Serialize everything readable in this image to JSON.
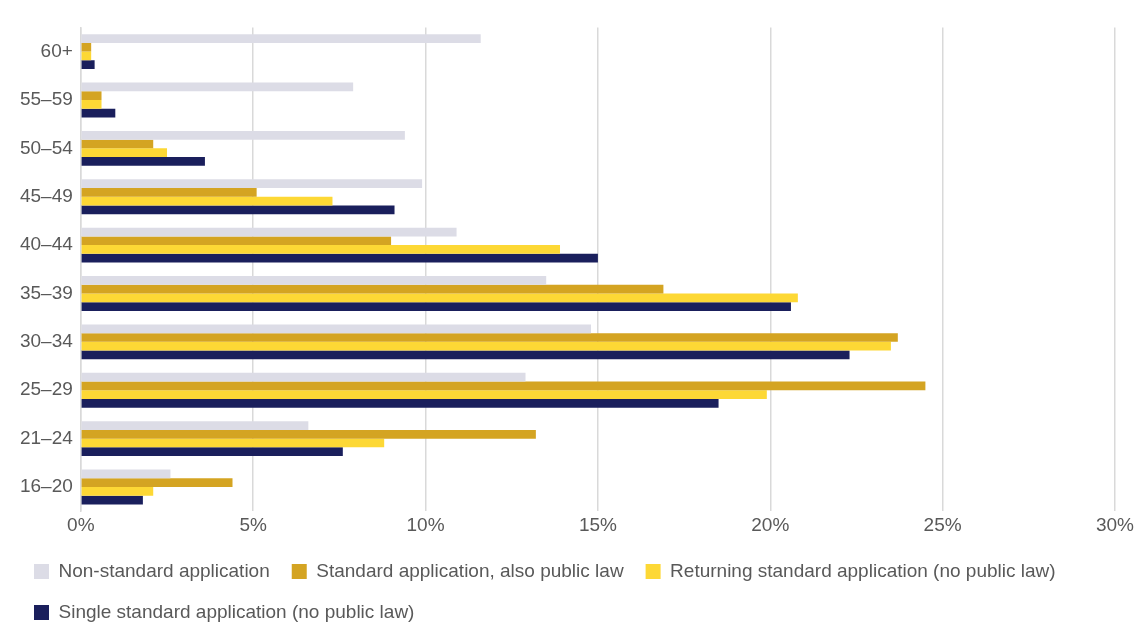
{
  "chart_data": {
    "type": "bar",
    "orientation": "horizontal",
    "categories": [
      "60+",
      "55–59",
      "50–54",
      "45–49",
      "40–44",
      "35–39",
      "30–34",
      "25–29",
      "21–24",
      "16–20"
    ],
    "series": [
      {
        "name": "Non-standard application",
        "color": "#dcdce6",
        "values": [
          11.6,
          7.9,
          9.4,
          9.9,
          10.9,
          13.5,
          14.8,
          12.9,
          6.6,
          2.6
        ]
      },
      {
        "name": "Standard application, also public law",
        "color": "#d4a422",
        "values": [
          0.3,
          0.6,
          2.1,
          5.1,
          9.0,
          16.9,
          23.7,
          24.5,
          13.2,
          4.4
        ]
      },
      {
        "name": "Returning standard application (no public law)",
        "color": "#fdd835",
        "values": [
          0.3,
          0.6,
          2.5,
          7.3,
          13.9,
          20.8,
          23.5,
          19.9,
          8.8,
          2.1
        ]
      },
      {
        "name": "Single standard application (no public law)",
        "color": "#1a1f5c",
        "values": [
          0.4,
          1.0,
          3.6,
          9.1,
          15.0,
          20.6,
          22.3,
          18.5,
          7.6,
          1.8
        ]
      }
    ],
    "xlim": [
      0,
      30
    ],
    "xticks": [
      {
        "value": 0,
        "label": "0%"
      },
      {
        "value": 5,
        "label": "5%"
      },
      {
        "value": 10,
        "label": "10%"
      },
      {
        "value": 15,
        "label": "15%"
      },
      {
        "value": 20,
        "label": "20%"
      },
      {
        "value": 25,
        "label": "25%"
      },
      {
        "value": 30,
        "label": "30%"
      }
    ],
    "grid": "x",
    "legend": "bottom"
  }
}
